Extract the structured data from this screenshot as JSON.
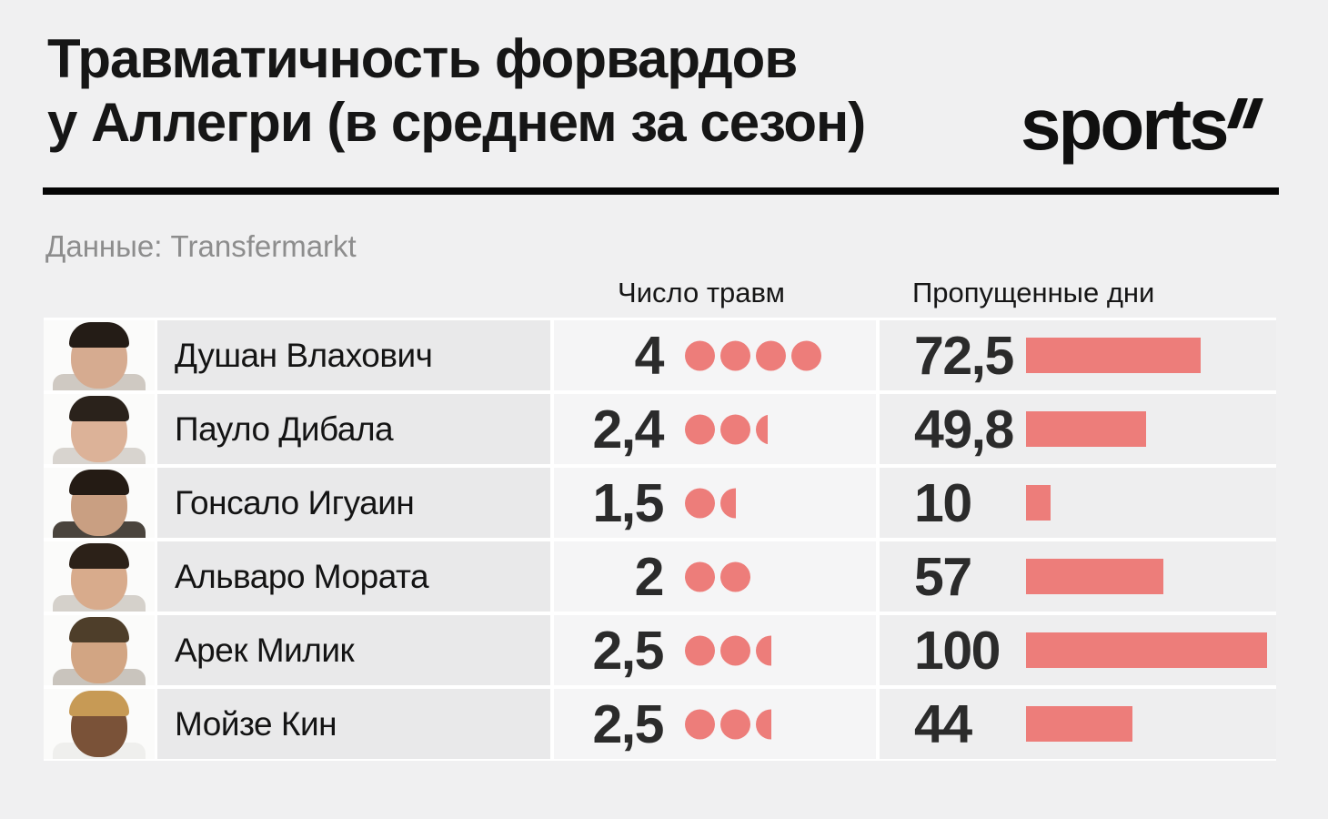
{
  "title": {
    "line1": "Травматичность форвардов",
    "line2": "у Аллегри (в среднем за сезон)"
  },
  "logo": {
    "text": "sports"
  },
  "source": "Данные: Transfermarkt",
  "columns": {
    "injuries": "Число травм",
    "days": "Пропущенные дни"
  },
  "colors": {
    "accent": "#ed7d7a",
    "title": "#161616",
    "muted": "#8d8d8d",
    "background": "#f0f0f1",
    "cell_name": "#e9e9ea",
    "cell_injuries": "#f5f5f6",
    "cell_days": "#eeeeef"
  },
  "players": [
    {
      "name": "Душан Влахович",
      "injuries_label": "4",
      "injuries_value": 4,
      "days_label": "72,5",
      "days_value": 72.5,
      "avatar": {
        "skin": "#d6ab90",
        "hair": "#241c16",
        "shirt": "#cfc9c2"
      }
    },
    {
      "name": "Пауло Дибала",
      "injuries_label": "2,4",
      "injuries_value": 2.4,
      "days_label": "49,8",
      "days_value": 49.8,
      "avatar": {
        "skin": "#dcb298",
        "hair": "#2a221b",
        "shirt": "#d8d4cf"
      }
    },
    {
      "name": "Гонсало Игуаин",
      "injuries_label": "1,5",
      "injuries_value": 1.5,
      "days_label": "10",
      "days_value": 10,
      "avatar": {
        "skin": "#c99f82",
        "hair": "#241b14",
        "shirt": "#4a443d"
      }
    },
    {
      "name": "Альваро Мората",
      "injuries_label": "2",
      "injuries_value": 2,
      "days_label": "57",
      "days_value": 57,
      "avatar": {
        "skin": "#d8ab8c",
        "hair": "#2c2118",
        "shirt": "#d5d1cb"
      }
    },
    {
      "name": "Арек Милик",
      "injuries_label": "2,5",
      "injuries_value": 2.5,
      "days_label": "100",
      "days_value": 100,
      "avatar": {
        "skin": "#d2a583",
        "hair": "#4e3e2a",
        "shirt": "#c9c4bd"
      }
    },
    {
      "name": "Мойзе Кин",
      "injuries_label": "2,5",
      "injuries_value": 2.5,
      "days_label": "44",
      "days_value": 44,
      "avatar": {
        "skin": "#7a5238",
        "hair": "#c79a55",
        "shirt": "#efefed"
      }
    }
  ],
  "chart_data": {
    "type": "bar",
    "title": "Травматичность форвардов у Аллегри (в среднем за сезон)",
    "source": "Данные: Transfermarkt",
    "categories": [
      "Душан Влахович",
      "Пауло Дибала",
      "Гонсало Игуаин",
      "Альваро Мората",
      "Арек Милик",
      "Мойзе Кин"
    ],
    "series": [
      {
        "name": "Число травм",
        "values": [
          4,
          2.4,
          1.5,
          2,
          2.5,
          2.5
        ]
      },
      {
        "name": "Пропущенные дни",
        "values": [
          72.5,
          49.8,
          10,
          57,
          100,
          44
        ]
      }
    ],
    "xlabel": "",
    "ylabel": "",
    "axis_range_days": [
      0,
      100
    ],
    "grid": false,
    "legend_position": "column-headers",
    "orientation": "horizontal"
  }
}
